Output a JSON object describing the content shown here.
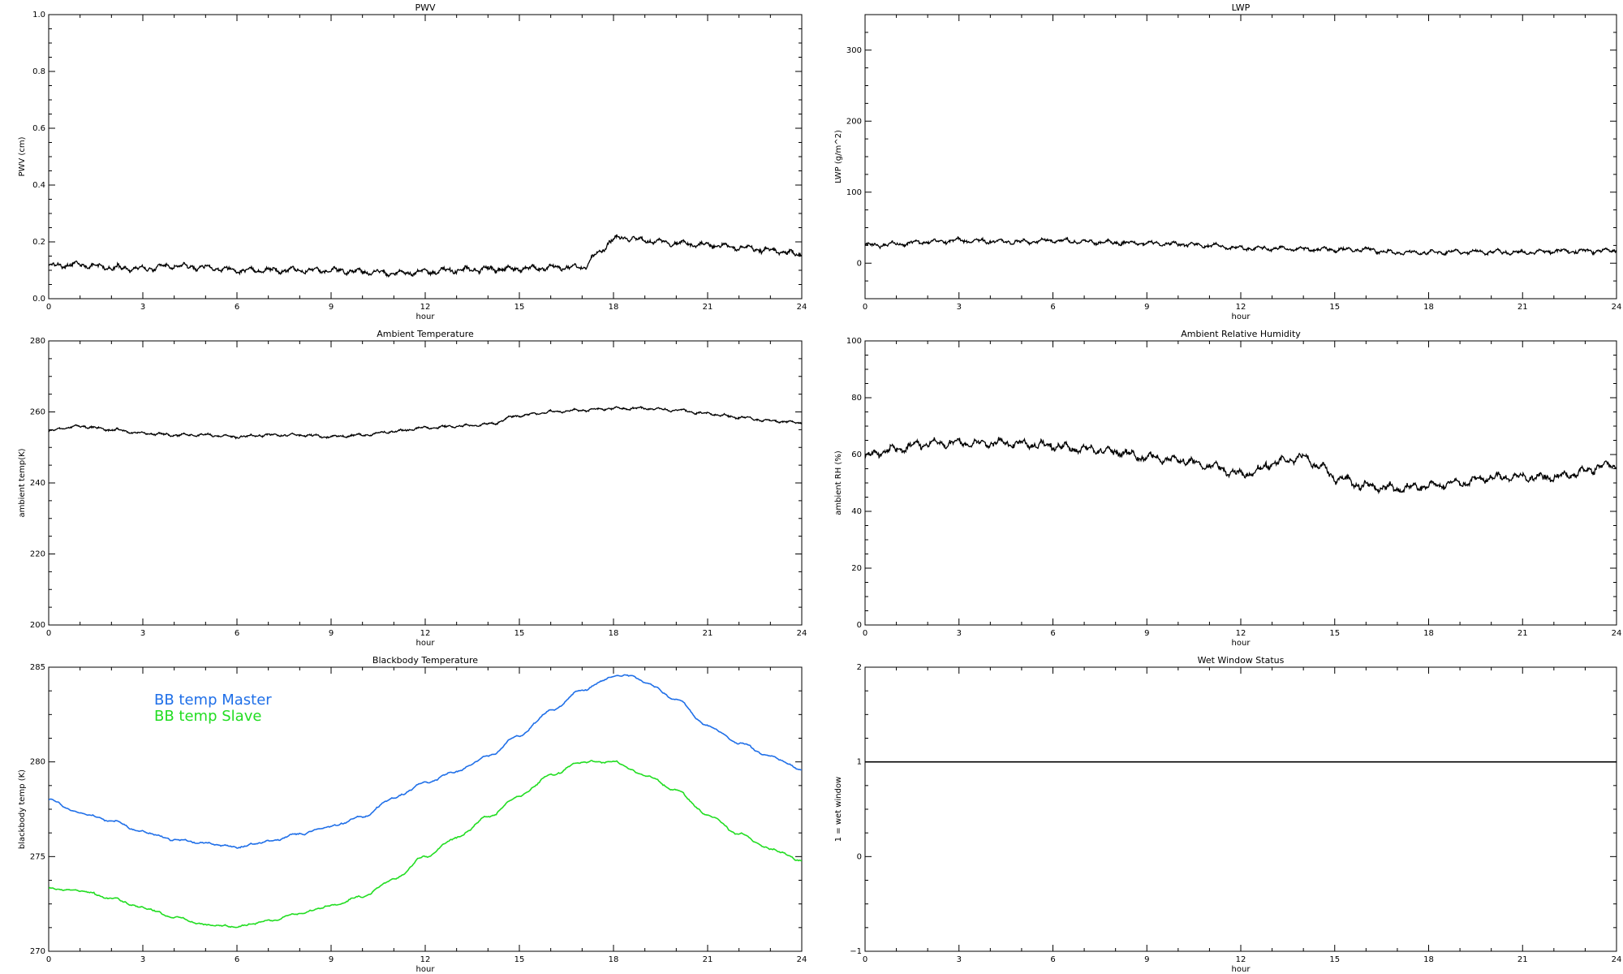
{
  "chart_data": [
    {
      "type": "line",
      "title": "PWV",
      "xlabel": "hour",
      "ylabel": "PWV (cm)",
      "xlim": [
        0,
        24
      ],
      "ylim": [
        0,
        1.0
      ],
      "xticks": [
        "0",
        "3",
        "6",
        "9",
        "12",
        "15",
        "18",
        "21",
        "24"
      ],
      "yticks": [
        "0.0",
        "0.2",
        "0.4",
        "0.6",
        "0.8",
        "1.0"
      ],
      "grid": false,
      "series": [
        {
          "color": "#000000",
          "style": "noisy",
          "noise": 0.008,
          "points": [
            [
              0,
              0.115
            ],
            [
              1,
              0.12
            ],
            [
              2,
              0.11
            ],
            [
              3,
              0.105
            ],
            [
              4,
              0.115
            ],
            [
              5,
              0.11
            ],
            [
              6,
              0.1
            ],
            [
              7,
              0.1
            ],
            [
              8,
              0.1
            ],
            [
              9,
              0.1
            ],
            [
              10,
              0.095
            ],
            [
              11,
              0.09
            ],
            [
              12,
              0.095
            ],
            [
              13,
              0.1
            ],
            [
              14,
              0.105
            ],
            [
              15,
              0.105
            ],
            [
              16,
              0.11
            ],
            [
              17,
              0.11
            ],
            [
              17.5,
              0.16
            ],
            [
              18,
              0.21
            ],
            [
              18.5,
              0.215
            ],
            [
              19,
              0.205
            ],
            [
              20,
              0.195
            ],
            [
              21,
              0.19
            ],
            [
              22,
              0.18
            ],
            [
              23,
              0.17
            ],
            [
              24,
              0.155
            ]
          ]
        }
      ]
    },
    {
      "type": "line",
      "title": "LWP",
      "xlabel": "hour",
      "ylabel": "LWP (g/m^2)",
      "xlim": [
        0,
        24
      ],
      "ylim": [
        -50,
        350
      ],
      "xticks": [
        "0",
        "3",
        "6",
        "9",
        "12",
        "15",
        "18",
        "21",
        "24"
      ],
      "yticks": [
        "0",
        "100",
        "200",
        "300"
      ],
      "ytick_values": [
        0,
        100,
        200,
        300
      ],
      "grid": false,
      "series": [
        {
          "color": "#000000",
          "style": "noisy",
          "noise": 2.5,
          "points": [
            [
              0,
              25
            ],
            [
              1,
              27
            ],
            [
              2,
              30
            ],
            [
              3,
              32
            ],
            [
              4,
              31
            ],
            [
              5,
              30
            ],
            [
              6,
              32
            ],
            [
              7,
              30
            ],
            [
              8,
              29
            ],
            [
              9,
              28
            ],
            [
              10,
              27
            ],
            [
              11,
              25
            ],
            [
              12,
              21
            ],
            [
              13,
              21
            ],
            [
              14,
              20
            ],
            [
              15,
              19
            ],
            [
              16,
              19
            ],
            [
              17,
              15
            ],
            [
              18,
              15
            ],
            [
              19,
              16
            ],
            [
              20,
              16
            ],
            [
              21,
              15
            ],
            [
              22,
              17
            ],
            [
              23,
              17
            ],
            [
              24,
              18
            ]
          ]
        }
      ]
    },
    {
      "type": "line",
      "title": "Ambient Temperature",
      "xlabel": "hour",
      "ylabel": "ambient temp(K)",
      "xlim": [
        0,
        24
      ],
      "ylim": [
        200,
        280
      ],
      "xticks": [
        "0",
        "3",
        "6",
        "9",
        "12",
        "15",
        "18",
        "21",
        "24"
      ],
      "yticks": [
        "200",
        "220",
        "240",
        "260",
        "280"
      ],
      "ytick_values": [
        200,
        220,
        240,
        260,
        280
      ],
      "grid": false,
      "series": [
        {
          "color": "#000000",
          "style": "noisy",
          "noise": 0.3,
          "points": [
            [
              0,
              254.5
            ],
            [
              0.5,
              255.5
            ],
            [
              1,
              256
            ],
            [
              2,
              255
            ],
            [
              3,
              254
            ],
            [
              4,
              253.5
            ],
            [
              5,
              253.5
            ],
            [
              6,
              253
            ],
            [
              7,
              253.5
            ],
            [
              8,
              253.5
            ],
            [
              9,
              253
            ],
            [
              10,
              253.5
            ],
            [
              11,
              254.5
            ],
            [
              12,
              255.5
            ],
            [
              13,
              256
            ],
            [
              14,
              256.5
            ],
            [
              15,
              259
            ],
            [
              16,
              260
            ],
            [
              17,
              260.5
            ],
            [
              18,
              261
            ],
            [
              19,
              261
            ],
            [
              20,
              260.5
            ],
            [
              21,
              259.5
            ],
            [
              22,
              258.5
            ],
            [
              23,
              257.5
            ],
            [
              24,
              257
            ]
          ]
        }
      ]
    },
    {
      "type": "line",
      "title": "Ambient Relative Humidity",
      "xlabel": "hour",
      "ylabel": "ambient RH (%)",
      "xlim": [
        0,
        24
      ],
      "ylim": [
        0,
        100
      ],
      "xticks": [
        "0",
        "3",
        "6",
        "9",
        "12",
        "15",
        "18",
        "21",
        "24"
      ],
      "yticks": [
        "0",
        "20",
        "40",
        "60",
        "80",
        "100"
      ],
      "ytick_values": [
        0,
        20,
        40,
        60,
        80,
        100
      ],
      "grid": false,
      "series": [
        {
          "color": "#000000",
          "style": "noisy",
          "noise": 1.2,
          "points": [
            [
              0,
              59
            ],
            [
              0.5,
              61
            ],
            [
              1,
              62
            ],
            [
              2,
              64
            ],
            [
              3,
              64
            ],
            [
              4,
              64
            ],
            [
              5,
              64
            ],
            [
              6,
              63
            ],
            [
              7,
              62
            ],
            [
              8,
              61
            ],
            [
              9,
              59
            ],
            [
              10,
              58
            ],
            [
              11,
              56
            ],
            [
              12,
              53
            ],
            [
              12.5,
              54
            ],
            [
              13,
              57
            ],
            [
              14,
              59
            ],
            [
              14.5,
              56
            ],
            [
              15,
              52
            ],
            [
              16,
              49
            ],
            [
              17,
              48
            ],
            [
              18,
              49
            ],
            [
              19,
              50
            ],
            [
              20,
              52
            ],
            [
              21,
              52
            ],
            [
              22,
              52
            ],
            [
              23,
              54
            ],
            [
              23.5,
              56
            ],
            [
              24,
              56
            ]
          ]
        }
      ]
    },
    {
      "type": "line",
      "title": "Blackbody Temperature",
      "xlabel": "hour",
      "ylabel": "blackbody temp (K)",
      "xlim": [
        0,
        24
      ],
      "ylim": [
        270,
        285
      ],
      "xticks": [
        "0",
        "3",
        "6",
        "9",
        "12",
        "15",
        "18",
        "21",
        "24"
      ],
      "yticks": [
        "270",
        "275",
        "280",
        "285"
      ],
      "ytick_values": [
        270,
        275,
        280,
        285
      ],
      "grid": false,
      "legend": {
        "position": "upper-left",
        "entries": [
          {
            "label": "BB temp Master",
            "color": "#1f6fe8"
          },
          {
            "label": "BB temp Slave",
            "color": "#22dd22"
          }
        ]
      },
      "series": [
        {
          "name": "BB temp Master",
          "color": "#1f6fe8",
          "style": "smooth",
          "noise": 0.04,
          "points": [
            [
              0,
              278
            ],
            [
              1,
              277.3
            ],
            [
              2,
              276.9
            ],
            [
              3,
              276.3
            ],
            [
              4,
              275.9
            ],
            [
              5,
              275.7
            ],
            [
              6,
              275.5
            ],
            [
              7,
              275.8
            ],
            [
              8,
              276.2
            ],
            [
              9,
              276.6
            ],
            [
              10,
              277.1
            ],
            [
              11,
              278.1
            ],
            [
              12,
              278.9
            ],
            [
              13,
              279.5
            ],
            [
              14,
              280.3
            ],
            [
              15,
              281.4
            ],
            [
              16,
              282.7
            ],
            [
              17,
              283.8
            ],
            [
              18,
              284.5
            ],
            [
              18.5,
              284.6
            ],
            [
              19,
              284.2
            ],
            [
              20,
              283.3
            ],
            [
              21,
              281.9
            ],
            [
              22,
              281
            ],
            [
              23,
              280.3
            ],
            [
              24,
              279.6
            ]
          ]
        },
        {
          "name": "BB temp Slave",
          "color": "#22dd22",
          "style": "smooth",
          "noise": 0.04,
          "points": [
            [
              0,
              273.3
            ],
            [
              1,
              273.2
            ],
            [
              2,
              272.8
            ],
            [
              3,
              272.3
            ],
            [
              4,
              271.8
            ],
            [
              5,
              271.4
            ],
            [
              6,
              271.3
            ],
            [
              7,
              271.6
            ],
            [
              8,
              272
            ],
            [
              9,
              272.4
            ],
            [
              10,
              272.9
            ],
            [
              11,
              273.8
            ],
            [
              12,
              275
            ],
            [
              13,
              276
            ],
            [
              14,
              277.1
            ],
            [
              15,
              278.2
            ],
            [
              16,
              279.3
            ],
            [
              17,
              280
            ],
            [
              18,
              280
            ],
            [
              19,
              279.3
            ],
            [
              20,
              278.5
            ],
            [
              21,
              277.2
            ],
            [
              22,
              276.2
            ],
            [
              23,
              275.4
            ],
            [
              24,
              274.8
            ]
          ]
        }
      ]
    },
    {
      "type": "line",
      "title": "Wet Window Status",
      "xlabel": "hour",
      "ylabel": "1 = wet window",
      "xlim": [
        0,
        24
      ],
      "ylim": [
        -1,
        2
      ],
      "xticks": [
        "0",
        "3",
        "6",
        "9",
        "12",
        "15",
        "18",
        "21",
        "24"
      ],
      "yticks": [
        "−1",
        "0",
        "1",
        "2"
      ],
      "ytick_values": [
        -1,
        0,
        1,
        2
      ],
      "grid": false,
      "series": [
        {
          "color": "#000000",
          "style": "flat",
          "noise": 0,
          "points": [
            [
              0,
              1
            ],
            [
              24,
              1
            ]
          ]
        }
      ]
    }
  ]
}
